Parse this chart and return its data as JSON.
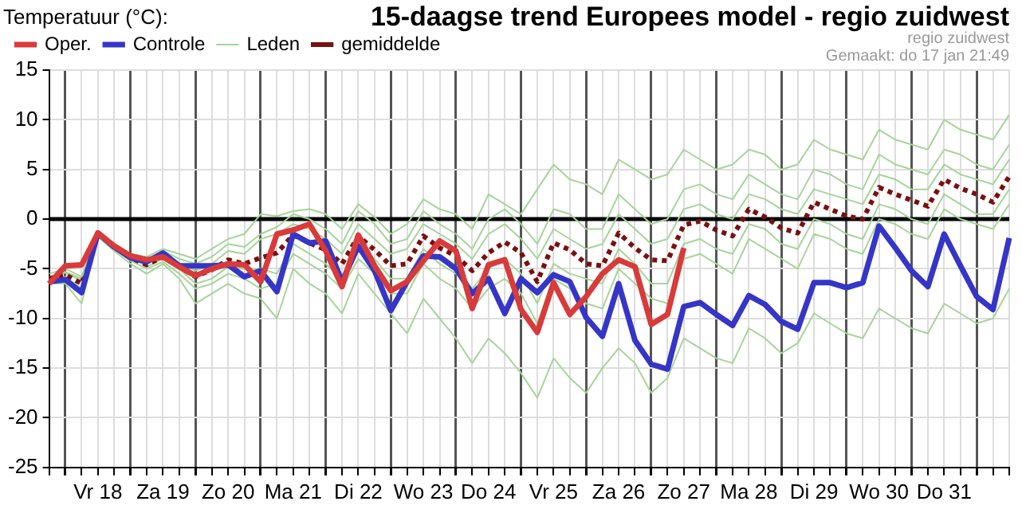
{
  "chart_data": {
    "type": "line",
    "title": "15-daagse trend Europees model - regio zuidwest",
    "ylabel": "Temperatuur (°C):",
    "annotations": [
      "regio zuidwest",
      "Gemaakt: do 17 jan 21:49"
    ],
    "categories": [
      null,
      null,
      null,
      "Vr 18",
      null,
      null,
      null,
      "Za 19",
      null,
      null,
      null,
      "Zo 20",
      null,
      null,
      null,
      "Ma 21",
      null,
      null,
      null,
      "Di 22",
      null,
      null,
      null,
      "Wo 23",
      null,
      null,
      null,
      "Do 24",
      null,
      null,
      null,
      "Vr 25",
      null,
      null,
      null,
      "Za 26",
      null,
      null,
      null,
      "Zo 27",
      null,
      null,
      null,
      "Ma 28",
      null,
      null,
      null,
      "Di 29",
      null,
      null,
      null,
      "Wo 30",
      null,
      null,
      null,
      "Do 31",
      null,
      null,
      null,
      null
    ],
    "ylim": [
      -25,
      15
    ],
    "yticks": [
      -25,
      -20,
      -15,
      -10,
      -5,
      0,
      5,
      10,
      15
    ],
    "grid": true,
    "legend": "top left",
    "marker": "none",
    "ref_lines": [
      {
        "axis": "y",
        "value": 0,
        "color": "#000000"
      }
    ],
    "series": [
      {
        "name": "Oper.",
        "color": "#d93a3a",
        "values": [
          -6.5,
          -4.7,
          -4.6,
          -1.4,
          -2.7,
          -3.7,
          -4.1,
          -3.8,
          -4.8,
          -5.7,
          -5.0,
          -4.5,
          -4.6,
          -6.3,
          -1.5,
          -1.1,
          -0.5,
          -3.2,
          -6.8,
          -1.6,
          -4.7,
          -7.2,
          -6.3,
          -4.2,
          -2.2,
          -3.2,
          -9.0,
          -4.6,
          -4.1,
          -9.1,
          -11.4,
          -6.4,
          -9.6,
          -7.8,
          -5.5,
          -4.1,
          -4.8,
          -10.6,
          -9.6,
          -2.9,
          null,
          null,
          null,
          null,
          null,
          null,
          null,
          null,
          null,
          null,
          null,
          null,
          null,
          null,
          null,
          null,
          null,
          null,
          null,
          null
        ]
      },
      {
        "name": "Controle",
        "color": "#3535c8",
        "values": [
          -6.3,
          -6.1,
          -7.4,
          -1.4,
          -2.8,
          -3.9,
          -4.3,
          -3.4,
          -4.7,
          -4.7,
          -4.7,
          -4.6,
          -5.8,
          -5.2,
          -7.3,
          -1.5,
          -2.4,
          -2.2,
          -6.3,
          -2.7,
          -5.2,
          -9.2,
          -6.3,
          -3.7,
          -3.8,
          -5.0,
          -7.5,
          -6.0,
          -9.5,
          -6.0,
          -7.4,
          -5.6,
          -6.3,
          -9.9,
          -11.8,
          -6.5,
          -12.2,
          -14.6,
          -15.1,
          -8.8,
          -8.4,
          -9.6,
          -10.7,
          -7.7,
          -8.6,
          -10.3,
          -11.1,
          -6.4,
          -6.4,
          -6.9,
          -6.4,
          -0.7,
          -2.9,
          -5.2,
          -6.8,
          -1.5,
          -4.7,
          -7.8,
          -9.1,
          -1.9
        ]
      },
      {
        "name": "Leden",
        "color": "#a6d49a",
        "values": [
          -5.5,
          -5.0,
          -5.8,
          -1.2,
          -2.5,
          -3.5,
          -3.8,
          -3.0,
          -3.5,
          -4.0,
          -3.0,
          -2.0,
          -1.5,
          0.5,
          0.3,
          0.8,
          1.0,
          0.5,
          -1.0,
          1.5,
          0.2,
          -1.5,
          -0.5,
          2.0,
          1.0,
          0.5,
          -1.0,
          2.5,
          1.5,
          0.5,
          3.0,
          5.5,
          4.0,
          3.5,
          2.5,
          6.0,
          5.0,
          4.0,
          4.5,
          7.0,
          6.0,
          5.0,
          5.5,
          7.0,
          6.5,
          5.0,
          5.5,
          8.0,
          7.0,
          6.5,
          6.0,
          9.0,
          8.0,
          7.5,
          7.0,
          10.0,
          9.0,
          8.5,
          8.0,
          10.5
        ]
      },
      {
        "color": "#a6d49a",
        "values": [
          -6.5,
          -6.5,
          -8.5,
          -1.8,
          -3.2,
          -4.5,
          -5.5,
          -4.5,
          -6.0,
          -8.5,
          -7.5,
          -6.5,
          -7.5,
          -8.0,
          -10.0,
          -5.0,
          -6.5,
          -7.5,
          -9.5,
          -5.5,
          -7.5,
          -9.5,
          -11.5,
          -8.0,
          -10.0,
          -12.0,
          -14.5,
          -12.0,
          -13.5,
          -15.5,
          -18.0,
          -14.0,
          -16.0,
          -17.5,
          -15.0,
          -13.0,
          -14.5,
          -17.5,
          -16.0,
          -12.0,
          -13.0,
          -14.0,
          -14.5,
          -11.0,
          -12.0,
          -13.5,
          -12.5,
          -9.5,
          -10.5,
          -11.5,
          -12.0,
          -9.0,
          -10.0,
          -11.0,
          -11.5,
          -8.5,
          -9.5,
          -10.5,
          -10.0,
          -7.0
        ]
      },
      {
        "color": "#a6d49a",
        "values": [
          -6.2,
          -5.3,
          -6.0,
          -1.3,
          -2.6,
          -3.7,
          -4.2,
          -3.2,
          -4.0,
          -4.5,
          -3.8,
          -2.5,
          -2.8,
          -1.5,
          -0.8,
          0.5,
          0.0,
          -1.0,
          -2.5,
          0.8,
          -0.5,
          -2.5,
          -2.0,
          0.8,
          -0.5,
          -1.5,
          -3.0,
          0.0,
          1.0,
          -0.5,
          -2.5,
          1.0,
          0.5,
          -1.0,
          -1.0,
          2.5,
          1.0,
          -0.5,
          0.0,
          3.0,
          3.5,
          2.5,
          2.0,
          4.5,
          3.5,
          2.5,
          2.0,
          5.0,
          4.5,
          3.5,
          3.0,
          6.5,
          5.5,
          5.0,
          4.5,
          7.0,
          6.5,
          5.5,
          5.0,
          7.5
        ]
      },
      {
        "color": "#a6d49a",
        "values": [
          -6.0,
          -6.0,
          -7.0,
          -1.6,
          -3.0,
          -4.2,
          -5.0,
          -4.3,
          -5.5,
          -7.0,
          -6.5,
          -5.5,
          -6.0,
          -7.0,
          -6.5,
          -3.5,
          -4.5,
          -5.5,
          -7.0,
          -4.0,
          -5.5,
          -7.5,
          -7.5,
          -4.5,
          -6.0,
          -7.0,
          -9.0,
          -7.0,
          -6.0,
          -7.5,
          -10.5,
          -6.0,
          -7.0,
          -8.5,
          -9.0,
          -5.0,
          -6.5,
          -8.0,
          -8.5,
          -4.0,
          -3.5,
          -4.5,
          -5.5,
          -2.0,
          -3.0,
          -4.0,
          -5.0,
          -1.5,
          -2.0,
          -3.0,
          -3.5,
          0.0,
          -0.5,
          -1.5,
          -2.0,
          1.0,
          0.0,
          -0.5,
          -1.0,
          1.5
        ]
      },
      {
        "color": "#a6d49a",
        "values": [
          -5.8,
          -5.4,
          -6.2,
          -1.5,
          -2.9,
          -4.0,
          -4.4,
          -3.6,
          -4.4,
          -5.2,
          -4.5,
          -3.2,
          -3.5,
          -2.0,
          -1.5,
          -0.5,
          -1.0,
          -2.0,
          -3.5,
          -0.5,
          -2.0,
          -3.5,
          -3.0,
          -0.5,
          -1.5,
          -2.5,
          -4.0,
          -1.5,
          -0.5,
          -2.0,
          -4.0,
          -1.0,
          -2.0,
          -3.0,
          -2.5,
          0.5,
          -1.0,
          -2.5,
          -2.0,
          1.0,
          1.5,
          0.5,
          0.0,
          2.5,
          2.0,
          1.0,
          0.5,
          3.0,
          2.5,
          2.0,
          1.5,
          4.5,
          4.0,
          3.0,
          3.0,
          5.5,
          4.5,
          4.0,
          3.5,
          6.0
        ]
      },
      {
        "color": "#a6d49a",
        "values": [
          -6.3,
          -5.8,
          -7.0,
          -1.4,
          -2.7,
          -3.8,
          -4.8,
          -4.0,
          -5.0,
          -6.5,
          -6.0,
          -4.8,
          -5.0,
          -5.0,
          -5.5,
          -2.5,
          -3.5,
          -4.5,
          -6.0,
          -3.0,
          -4.0,
          -6.0,
          -6.0,
          -3.0,
          -4.5,
          -5.5,
          -7.0,
          -5.0,
          -4.0,
          -5.5,
          -8.5,
          -4.5,
          -5.5,
          -6.0,
          -6.5,
          -3.0,
          -4.5,
          -6.5,
          -6.5,
          -2.5,
          -2.0,
          -3.0,
          -3.5,
          -0.5,
          -1.0,
          -2.5,
          -3.0,
          0.0,
          -0.5,
          -1.5,
          -2.0,
          1.5,
          1.0,
          0.0,
          -0.5,
          2.5,
          1.5,
          0.5,
          0.5,
          3.0
        ]
      },
      {
        "name": "gemiddelde",
        "color": "#7a1010",
        "line_style": "dotted",
        "values": [
          -6.0,
          -5.6,
          -6.5,
          -1.4,
          -2.8,
          -3.9,
          -4.6,
          -3.8,
          -4.8,
          -5.8,
          -5.1,
          -4.1,
          -4.5,
          -3.9,
          -3.4,
          -1.6,
          -2.4,
          -3.1,
          -4.5,
          -1.7,
          -3.1,
          -4.7,
          -4.5,
          -1.7,
          -2.9,
          -3.7,
          -5.2,
          -3.4,
          -2.3,
          -3.4,
          -6.3,
          -2.4,
          -3.1,
          -4.5,
          -4.7,
          -1.4,
          -2.9,
          -4.1,
          -4.2,
          -0.6,
          -0.2,
          -1.1,
          -1.7,
          1.0,
          0.2,
          -0.9,
          -1.4,
          1.7,
          1.0,
          0.3,
          0.0,
          3.2,
          2.5,
          1.9,
          1.3,
          4.0,
          3.1,
          2.5,
          1.7,
          4.3
        ]
      }
    ]
  }
}
